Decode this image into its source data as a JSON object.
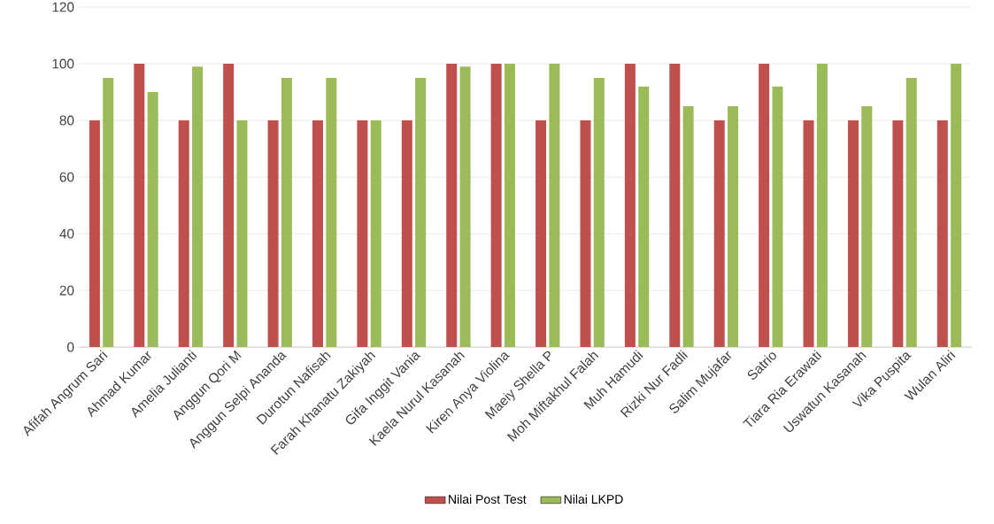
{
  "chart_data": {
    "type": "bar",
    "categories": [
      "Afifah Angrum Sari",
      "Ahmad Kumar",
      "Amelia Julianti",
      "Anggun Qori M",
      "Anggun Selpi Ananda",
      "Durotun Nafisah",
      "Farah Khanatu Zakiyah",
      "Gifa Inggit Vania",
      "Kaela Nurul Kasanah",
      "Kiren Anya Violina",
      "Maeiy Shella P",
      "Moh Miftakhul Falah",
      "Muh Hamudi",
      "Rizki Nur Fadli",
      "Salim Mujafar",
      "Satrio",
      "Tiara Ria Erawati",
      "Uswatun Kasanah",
      "Vika Puspita",
      "Wulan Aliri"
    ],
    "series": [
      {
        "name": "Nilai Post Test",
        "color": "#c0504d",
        "values": [
          80,
          100,
          80,
          100,
          80,
          80,
          80,
          80,
          100,
          100,
          80,
          80,
          100,
          100,
          80,
          100,
          80,
          80,
          80,
          80
        ]
      },
      {
        "name": "Nilai LKPD",
        "color": "#9bbb59",
        "values": [
          95,
          90,
          99,
          80,
          95,
          95,
          80,
          95,
          99,
          100,
          100,
          95,
          92,
          85,
          85,
          92,
          100,
          85,
          95,
          100
        ]
      }
    ],
    "ylim": [
      0,
      120
    ],
    "yticks": [
      0,
      20,
      40,
      60,
      80,
      100,
      120
    ],
    "grid": "y",
    "legend": "bottom"
  }
}
